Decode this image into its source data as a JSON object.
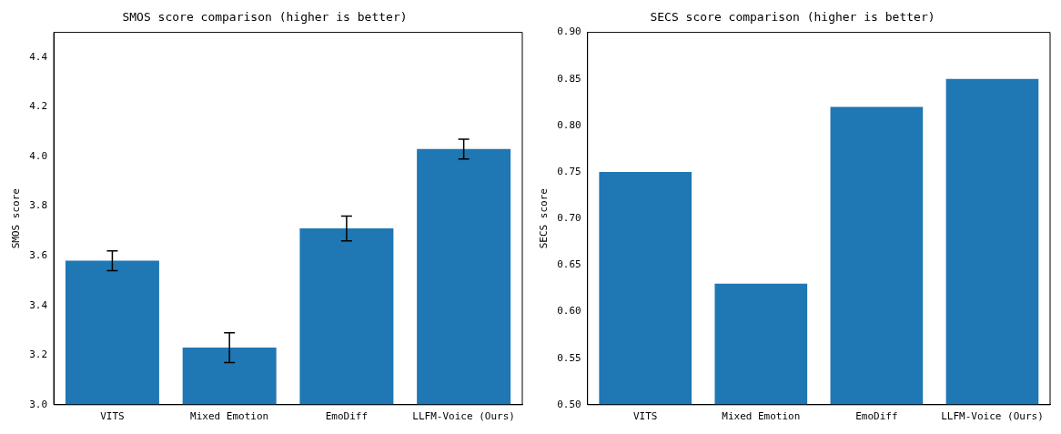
{
  "chart_data": [
    {
      "type": "bar",
      "title": "SMOS score comparison (higher is better)",
      "ylabel": "SMOS score",
      "categories": [
        "VITS",
        "Mixed Emotion",
        "EmoDiff",
        "LLFM-Voice (Ours)"
      ],
      "values": [
        3.58,
        3.23,
        3.71,
        4.03
      ],
      "errors": [
        0.04,
        0.06,
        0.05,
        0.04
      ],
      "color": "#1f77b4",
      "ylim": [
        3.0,
        4.5
      ],
      "yticks": [
        {
          "value": 3,
          "label": "3.0"
        },
        3.2,
        3.4,
        3.6,
        3.8,
        {
          "value": 4,
          "label": "4.0"
        },
        4.2,
        4.4
      ],
      "grid": false,
      "legend": false
    },
    {
      "type": "bar",
      "title": "SECS score comparison (higher is better)",
      "ylabel": "SECS score",
      "categories": [
        "VITS",
        "Mixed Emotion",
        "EmoDiff",
        "LLFM-Voice (Ours)"
      ],
      "values": [
        0.75,
        0.63,
        0.82,
        0.85
      ],
      "color": "#1f77b4",
      "ylim": [
        0.5,
        0.9
      ],
      "yticks": [
        {
          "value": 0.5,
          "label": "0.50"
        },
        0.55,
        {
          "value": 0.6,
          "label": "0.60"
        },
        0.65,
        {
          "value": 0.7,
          "label": "0.70"
        },
        0.75,
        {
          "value": 0.8,
          "label": "0.80"
        },
        0.85,
        {
          "value": 0.9,
          "label": "0.90"
        }
      ],
      "grid": false,
      "legend": false
    }
  ]
}
